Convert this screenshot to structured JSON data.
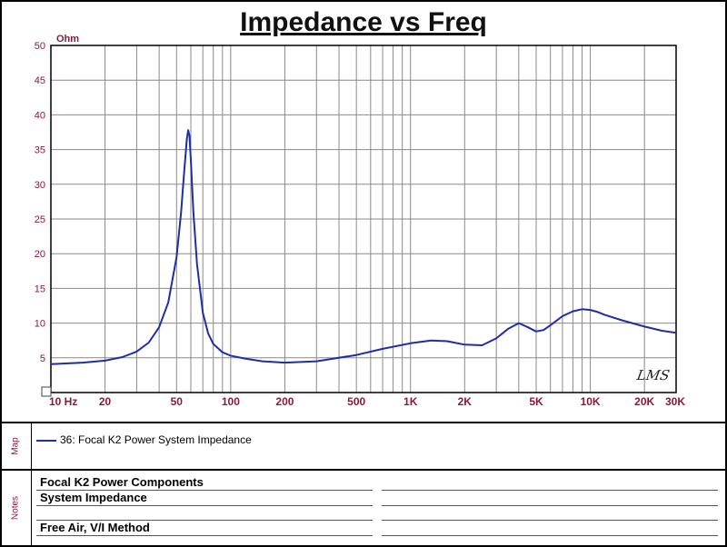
{
  "title": "Impedance vs Freq",
  "chart_data": {
    "type": "line",
    "title": "Impedance vs Freq",
    "ylabel": "Ohm",
    "xlabel": "",
    "x_scale": "log",
    "xlim": [
      10,
      30000
    ],
    "ylim": [
      0,
      50
    ],
    "grid": true,
    "y_ticks": [
      5,
      10,
      15,
      20,
      25,
      30,
      35,
      40,
      45,
      50
    ],
    "y_tick_labels": [
      "5",
      "10",
      "15",
      "20",
      "25",
      "30",
      "35",
      "40",
      "45",
      "50"
    ],
    "x_ticks": [
      10,
      20,
      50,
      100,
      200,
      500,
      1000,
      2000,
      5000,
      10000,
      20000,
      30000
    ],
    "x_tick_labels": [
      "10 Hz",
      "20",
      "50",
      "100",
      "200",
      "500",
      "1K",
      "2K",
      "5K",
      "10K",
      "20K",
      "30K"
    ],
    "series": [
      {
        "name": "36: Focal K2 Power  System Impedance",
        "color": "#1c2fa8",
        "x": [
          10,
          15,
          20,
          25,
          30,
          35,
          40,
          45,
          50,
          53,
          55,
          57,
          58,
          59,
          60,
          62,
          65,
          70,
          75,
          80,
          90,
          100,
          120,
          150,
          200,
          300,
          500,
          700,
          1000,
          1300,
          1600,
          2000,
          2500,
          3000,
          3500,
          4000,
          4500,
          5000,
          5500,
          6000,
          7000,
          8000,
          9000,
          10000,
          11000,
          12000,
          15000,
          20000,
          25000,
          30000
        ],
        "y": [
          4.1,
          4.3,
          4.6,
          5.1,
          5.9,
          7.2,
          9.4,
          13.0,
          19.5,
          26.0,
          31.5,
          36.5,
          37.8,
          37.0,
          33.5,
          26.0,
          18.5,
          11.5,
          8.5,
          7.0,
          5.8,
          5.3,
          4.9,
          4.5,
          4.3,
          4.5,
          5.4,
          6.3,
          7.1,
          7.5,
          7.4,
          6.9,
          6.8,
          7.8,
          9.2,
          10.0,
          9.4,
          8.8,
          9.0,
          9.7,
          11.0,
          11.7,
          12.0,
          11.9,
          11.6,
          11.2,
          10.4,
          9.5,
          8.9,
          8.6
        ]
      }
    ]
  },
  "map_panel": {
    "label": "Map",
    "legend_entry": "36: Focal K2 Power  System Impedance"
  },
  "notes_panel": {
    "label": "Notes",
    "lines": [
      "Focal K2 Power Components",
      "System Impedance",
      "",
      "Free Air, V/I Method"
    ]
  },
  "logo_text": "LMS"
}
